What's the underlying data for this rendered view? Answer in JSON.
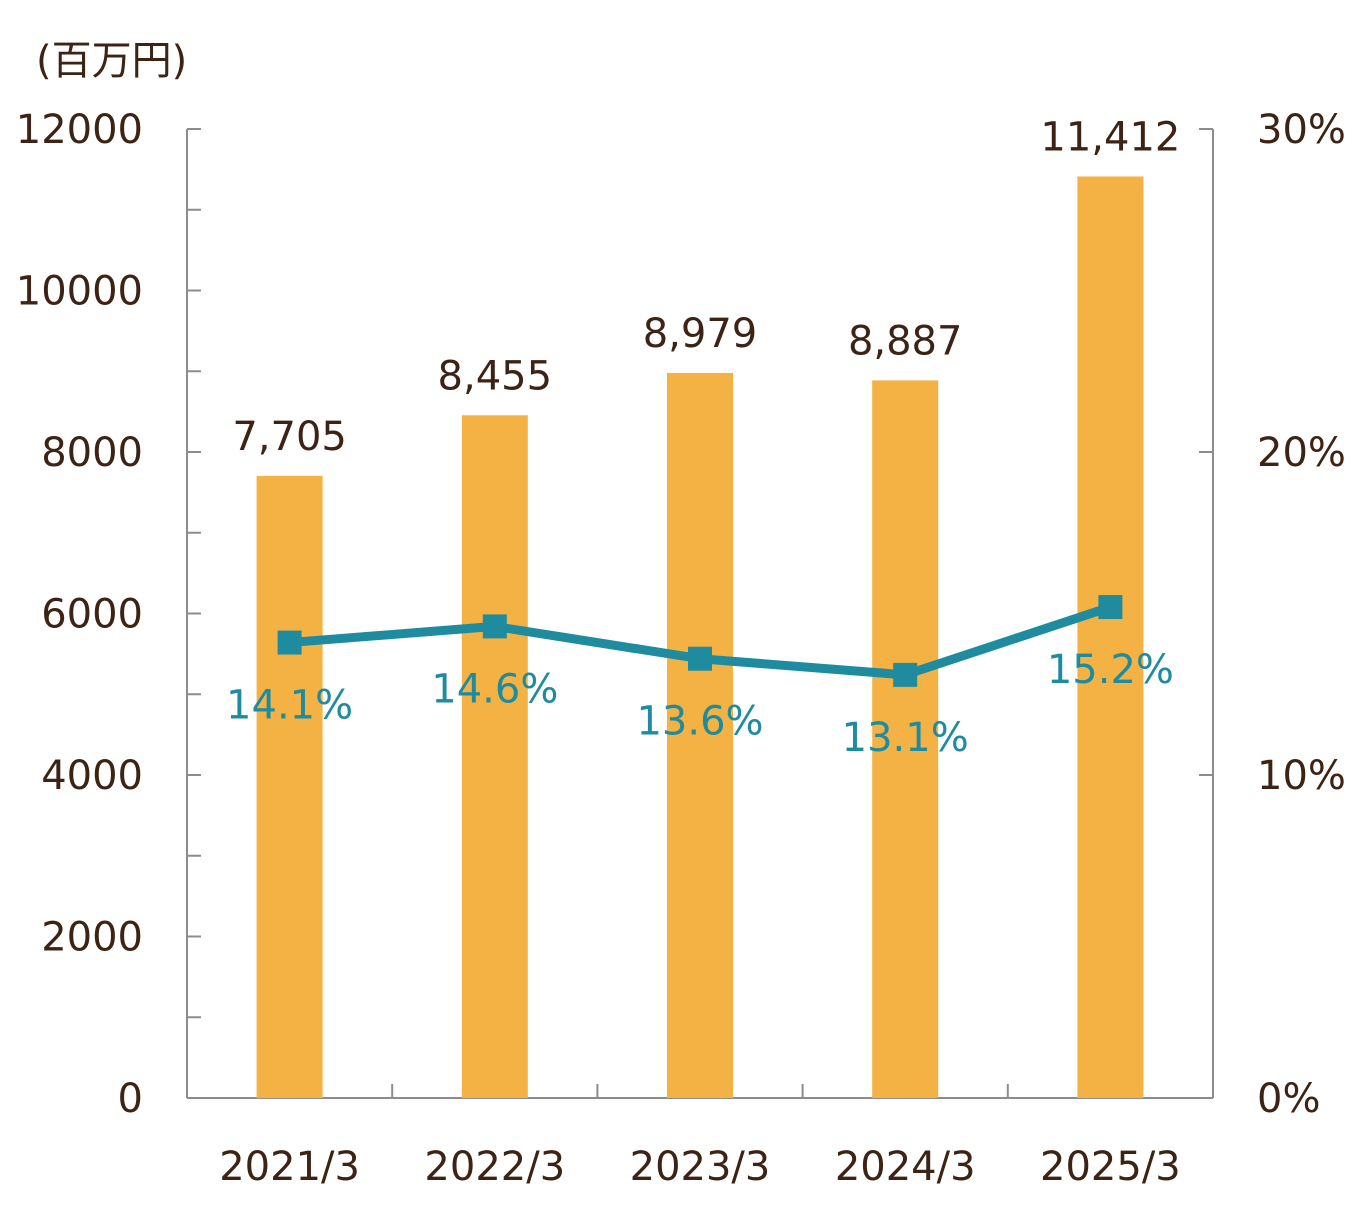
{
  "chart_data": {
    "type": "bar+line",
    "unit_label": "(百万円)",
    "categories": [
      "2021/3",
      "2022/3",
      "2023/3",
      "2024/3",
      "2025/3"
    ],
    "series": [
      {
        "name": "bar",
        "axis": "left",
        "values": [
          7705,
          8455,
          8979,
          8887,
          11412
        ],
        "labels": [
          "7,705",
          "8,455",
          "8,979",
          "8,887",
          "11,412"
        ],
        "color": "#f5b244"
      },
      {
        "name": "line",
        "axis": "right",
        "values": [
          14.1,
          14.6,
          13.6,
          13.1,
          15.2
        ],
        "labels": [
          "14.1%",
          "14.6%",
          "13.6%",
          "13.1%",
          "15.2%"
        ],
        "color": "#1e8c9e"
      }
    ],
    "left_axis": {
      "ylim": [
        0,
        12000
      ],
      "ticks": [
        "0",
        "2000",
        "4000",
        "6000",
        "8000",
        "10000",
        "12000"
      ],
      "tick_values": [
        0,
        2000,
        4000,
        6000,
        8000,
        10000,
        12000
      ]
    },
    "right_axis": {
      "ylim": [
        0,
        30
      ],
      "ticks": [
        "0%",
        "10%",
        "20%",
        "30%"
      ],
      "tick_values": [
        0,
        10,
        20,
        30
      ]
    },
    "grid": false,
    "text_color": "#3d2314",
    "axis_color": "#8c8c8c"
  }
}
